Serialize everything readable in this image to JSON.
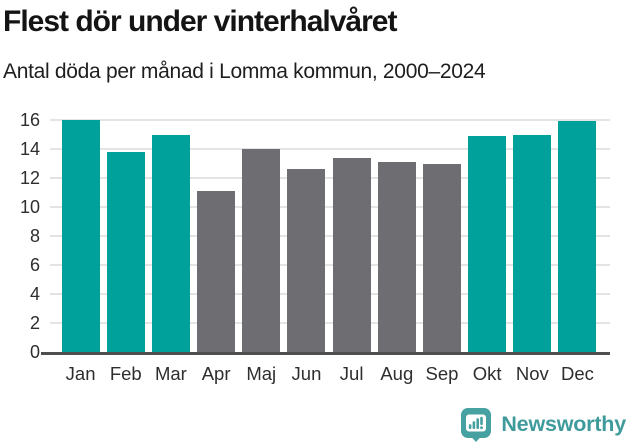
{
  "chart_data": {
    "type": "bar",
    "title": "Flest dör under vinterhalvåret",
    "subtitle": "Antal döda per månad i Lomma kommun, 2000–2024",
    "categories": [
      "Jan",
      "Feb",
      "Mar",
      "Apr",
      "Maj",
      "Jun",
      "Jul",
      "Aug",
      "Sep",
      "Okt",
      "Nov",
      "Dec"
    ],
    "values": [
      16.0,
      13.8,
      15.0,
      11.1,
      14.0,
      12.6,
      13.4,
      13.1,
      13.0,
      14.9,
      15.0,
      15.9
    ],
    "highlighted": [
      true,
      true,
      true,
      false,
      false,
      false,
      false,
      false,
      false,
      true,
      true,
      true
    ],
    "highlight_color": "#00a19a",
    "default_color": "#6d6d72",
    "grid_color": "#e4e4e4",
    "axis_color": "#4f4f4f",
    "xlabel": "",
    "ylabel": "",
    "ylim": [
      0,
      16
    ],
    "ytick_step": 2,
    "grid": "horizontal",
    "legend_position": "none"
  },
  "footer": {
    "brand": "Newsworthy",
    "brand_color": "#3f9b9b",
    "logo_color": "#47a1a1"
  }
}
